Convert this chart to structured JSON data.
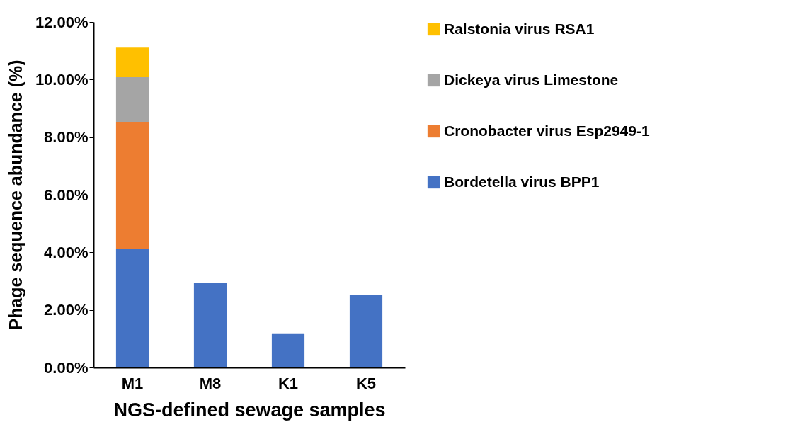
{
  "chart_data": {
    "type": "bar",
    "stacked": true,
    "xlabel": "NGS-defined sewage samples",
    "ylabel": "Phage sequence abundance (%)",
    "categories": [
      "M1",
      "M8",
      "K1",
      "K5"
    ],
    "series": [
      {
        "name": "Bordetella virus BPP1",
        "color": "#4472c4",
        "values": [
          4.13,
          2.93,
          1.16,
          2.51
        ]
      },
      {
        "name": "Cronobacter virus Esp2949-1",
        "color": "#ed7d31",
        "values": [
          4.4,
          null,
          null,
          null
        ]
      },
      {
        "name": "Dickeya virus Limestone",
        "color": "#a5a5a5",
        "values": [
          1.55,
          null,
          null,
          null
        ]
      },
      {
        "name": "Ralstonia virus RSA1",
        "color": "#ffc000",
        "values": [
          1.03,
          null,
          null,
          null
        ]
      }
    ],
    "ylim": [
      0,
      12
    ],
    "yticks": [
      {
        "value": 0,
        "label": "0.00%"
      },
      {
        "value": 2,
        "label": "2.00%"
      },
      {
        "value": 4,
        "label": "4.00%"
      },
      {
        "value": 6,
        "label": "6.00%"
      },
      {
        "value": 8,
        "label": "8.00%"
      },
      {
        "value": 10,
        "label": "10.00%"
      },
      {
        "value": 12,
        "label": "12.00%"
      }
    ],
    "grid": false,
    "legend": "right"
  }
}
